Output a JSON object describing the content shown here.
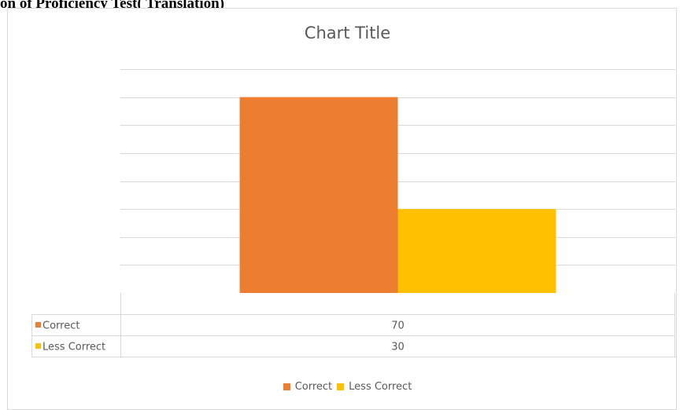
{
  "heading": "on of  Proficiency Test( Translation)",
  "chart_data": {
    "type": "bar",
    "title": "Chart Title",
    "categories": [
      ""
    ],
    "series": [
      {
        "name": "Correct",
        "values": [
          70
        ],
        "color": "#ED7D31"
      },
      {
        "name": "Less Correct",
        "values": [
          30
        ],
        "color": "#FFC000"
      }
    ],
    "ylim": [
      0,
      80
    ],
    "grid": true,
    "legend": "bottom",
    "data_table": true
  }
}
